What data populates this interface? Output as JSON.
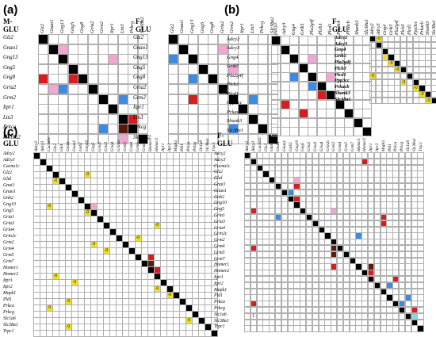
{
  "panels": [
    {
      "letter": "(a)",
      "groups": [
        {
          "title": "M-GLU",
          "genes": [
            "Glz2",
            "Gnao1",
            "Gng13",
            "Gng5",
            "Gng8",
            "Gria2",
            "Grm2",
            "Itpr1",
            "Ltn3",
            "Prkcg",
            "Slc38a2"
          ],
          "colors": {
            "1-2": "c-pink",
            "2-7": "c-pink",
            "4-0": "c-red",
            "4-3": "c-red",
            "5-2": "c-blue",
            "5-5": "c-red",
            "6-8": "c-blue",
            "8-9": "c-red",
            "9-8": "c-dark",
            "9-6": "c-blue",
            "10-8": "c-pink",
            "5-1": "c-pink"
          },
          "values": {}
        },
        {
          "title": "F-GLU",
          "genes": [
            "Glz2",
            "Gnao1",
            "Gng13",
            "Gng5",
            "Gng8",
            "Gria2",
            "Grm2",
            "Itpr1",
            "Ltn3",
            "Prkcg",
            "Slc38a2"
          ],
          "colors": {
            "2-0": "c-blue",
            "4-2": "c-blue",
            "5-5": "c-red",
            "6-2": "c-red",
            "6-8": "c-blue",
            "8-8": "c-dark",
            "9-6": "c-blue",
            "3-6": "c-pink",
            "1-5": "c-pink"
          },
          "values": {}
        }
      ]
    },
    {
      "letter": "(b)",
      "groups": [
        {
          "title": "",
          "genes": [
            "Adcy2",
            "Adcy3",
            "Gng4",
            "Grik5",
            "Pla2g4f",
            "Plcb3",
            "Plcd1",
            "Ppp3cc",
            "Prkacb",
            "Shank3",
            "Slc38a1"
          ],
          "colors": {
            "2-2": "c-red",
            "3-3": "c-dark",
            "4-2": "c-blue",
            "4-6": "c-pink",
            "5-4": "c-blue",
            "6-5": "c-red",
            "7-1": "c-red",
            "8-3": "c-red",
            "9-9": "c-blue",
            "2-4": "c-pink"
          },
          "values": {}
        },
        {
          "title": "F-GLU",
          "genes": [
            "Adcy2",
            "Adcy3",
            "Gng4",
            "Grik5",
            "Pla2g4f",
            "Plcb3",
            "Plcd1",
            "Ppp3cc",
            "Prkacb",
            "Shank3",
            "Slc38a1"
          ],
          "colors": {
            "0-1": "c-yel",
            "2-2": "c-yel",
            "4-3": "c-yel",
            "5-4": "c-yel",
            "6-0": "c-yel",
            "7-5": "c-yel",
            "8-7": "c-yel",
            "9-8": "c-yel",
            "10-9": "c-yel",
            "3-2": "c-yel"
          },
          "values": {
            "0-1": "-0",
            "2-2": "-0",
            "4-3": "-0",
            "5-4": "-0",
            "6-0": "-0",
            "7-5": "-0",
            "8-7": "-0",
            "9-8": "-0",
            "10-9": "-0"
          }
        }
      ]
    },
    {
      "letter": "(c)",
      "groups": [
        {
          "title": "M-GLU",
          "genes": [
            "Adcy2",
            "Adcy3",
            "Cacna1c",
            "Glz2",
            "Glul",
            "Gnai1",
            "Gnao1",
            "Gnb2",
            "Gng10",
            "Gng5",
            "Gria1",
            "Gria3",
            "Gria4",
            "Grin2c",
            "Grm2",
            "Grm4",
            "Grm5",
            "Grm7",
            "Homer1",
            "Homer2",
            "Itpr1",
            "Itpr2",
            "Mapk1",
            "Pld1",
            "Prkca",
            "Prkcg",
            "Slc1a6",
            "Slc38a1",
            "Trpc1"
          ],
          "colors": {
            "3-8": "c-yel",
            "4-3": "c-yel",
            "8-2": "c-yel",
            "9-8": "c-yel",
            "11-19": "c-yel",
            "14-9": "c-yel",
            "15-11": "c-yel",
            "16-18": "c-red",
            "17-18": "c-dark",
            "17-17": "c-dark",
            "18-19": "c-red",
            "19-3": "c-yel",
            "20-6": "c-yel",
            "21-19": "c-yel",
            "22-21": "c-yel",
            "23-5": "c-yel",
            "24-2": "c-yel",
            "25-25": "c-yel",
            "26-24": "c-yel",
            "27-5": "c-yel",
            "13-16": "c-yel",
            "8-9": "c-pink",
            "2-2": "c-pink",
            "11-11": "c-pink"
          },
          "values": {
            "3-8": "-0",
            "4-3": "-0",
            "8-2": "-0",
            "9-8": "-0",
            "11-19": "-0",
            "14-9": "-0",
            "15-11": "-0",
            "19-3": "-0",
            "20-6": "-0",
            "21-19": "-0",
            "22-21": "-0",
            "23-5": "-0",
            "24-2": "-0",
            "25-25": "-0",
            "26-24": "-0",
            "27-5": "-0",
            "13-16": "-0"
          }
        },
        {
          "title": "F-GLU",
          "genes": [
            "Adcy2",
            "Adcy3",
            "Cacna1c",
            "Glz2",
            "Glul",
            "Gnai1",
            "Gnao1",
            "Gnb2",
            "Gng10",
            "Gng5",
            "Gria1",
            "Gria3",
            "Gria4",
            "Grin2c",
            "Grm2",
            "Grm4",
            "Grm5",
            "Grm7",
            "Homer1",
            "Homer2",
            "Itpr1",
            "Itpr2",
            "Mapk1",
            "Pld1",
            "Prkca",
            "Prkcg",
            "Slc1a6",
            "Slc38a1",
            "Trpc1"
          ],
          "colors": {
            "1-19": "c-red",
            "2-2": "c-blue",
            "5-8": "c-red",
            "6-7": "c-blue",
            "7-8": "c-red",
            "9-1": "c-red",
            "10-5": "c-blue",
            "10-22": "c-red",
            "11-22": "c-red",
            "13-18": "c-blue",
            "15-1": "c-red",
            "15-14": "c-dark",
            "16-14": "c-dark",
            "16-16": "c-red",
            "17-17": "c-dark",
            "18-14": "c-red",
            "18-20": "c-dark",
            "19-20": "c-red",
            "20-20": "c-dark",
            "21-23": "c-blue",
            "23-26": "c-blue",
            "24-1": "c-red",
            "24-25": "c-blue",
            "25-27": "c-red",
            "26-27": "c-cyan",
            "20-24": "c-red",
            "4-8": "c-pink",
            "9-14": "c-pink"
          },
          "values": {
            "26-1": "1"
          }
        }
      ]
    }
  ]
}
